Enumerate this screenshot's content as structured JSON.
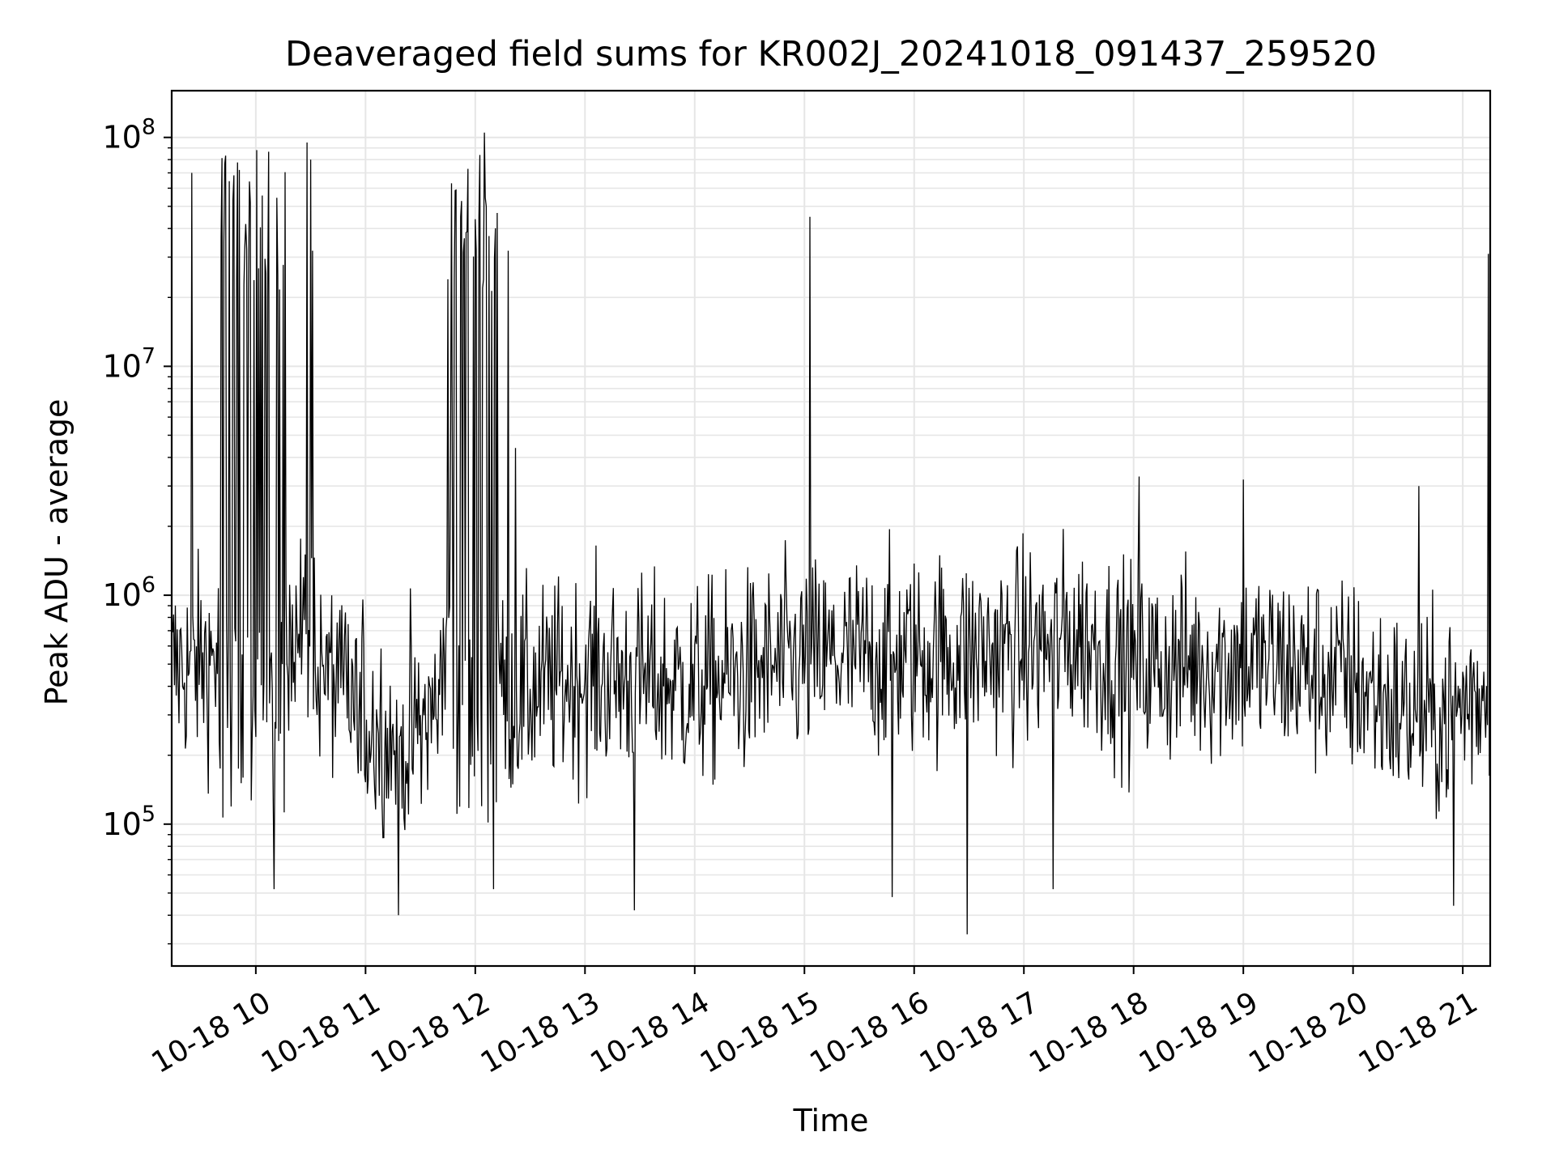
{
  "chart_data": {
    "type": "line",
    "title": "Deaveraged field sums for KR002J_20241018_091437_259520",
    "xlabel": "Time",
    "ylabel": "Peak ADU - average",
    "x_axis": {
      "range": [
        "2024-10-18 09:14",
        "2024-10-18 21:15"
      ],
      "tick_labels": [
        "10-18 10",
        "10-18 11",
        "10-18 12",
        "10-18 13",
        "10-18 14",
        "10-18 15",
        "10-18 16",
        "10-18 17",
        "10-18 18",
        "10-18 19",
        "10-18 20",
        "10-18 21"
      ],
      "tick_hours": [
        10,
        11,
        12,
        13,
        14,
        15,
        16,
        17,
        18,
        19,
        20,
        21
      ],
      "tick_label_rotation_deg": 30
    },
    "y_axis": {
      "scale": "log",
      "range": [
        24000,
        160000000
      ],
      "major_ticks": [
        100000,
        1000000,
        10000000,
        100000000
      ]
    },
    "grid": true,
    "series_color": "#000000",
    "series": [
      {
        "sampling": "approximately 1 sample per minute; median-level envelope plus isolated spikes",
        "baseline": [
          [
            "2024-10-18 09:14",
            480000
          ],
          [
            "2024-10-18 09:30",
            500000
          ],
          [
            "2024-10-18 09:40",
            550000
          ],
          [
            "2024-10-18 09:45",
            20000000
          ],
          [
            "2024-10-18 10:00",
            50000000
          ],
          [
            "2024-10-18 10:12",
            60000000
          ],
          [
            "2024-10-18 10:15",
            900000
          ],
          [
            "2024-10-18 10:40",
            450000
          ],
          [
            "2024-10-18 11:00",
            280000
          ],
          [
            "2024-10-18 11:20",
            220000
          ],
          [
            "2024-10-18 11:40",
            320000
          ],
          [
            "2024-10-18 11:50",
            4000000
          ],
          [
            "2024-10-18 12:05",
            8000000
          ],
          [
            "2024-10-18 12:15",
            350000
          ],
          [
            "2024-10-18 13:00",
            450000
          ],
          [
            "2024-10-18 14:00",
            400000
          ],
          [
            "2024-10-18 15:00",
            520000
          ],
          [
            "2024-10-18 16:00",
            550000
          ],
          [
            "2024-10-18 17:00",
            580000
          ],
          [
            "2024-10-18 17:30",
            650000
          ],
          [
            "2024-10-18 18:00",
            480000
          ],
          [
            "2024-10-18 19:00",
            520000
          ],
          [
            "2024-10-18 19:30",
            480000
          ],
          [
            "2024-10-18 20:00",
            420000
          ],
          [
            "2024-10-18 20:30",
            300000
          ],
          [
            "2024-10-18 20:45",
            280000
          ],
          [
            "2024-10-18 21:15",
            400000
          ]
        ],
        "spikes": [
          [
            "2024-10-18 09:25",
            70000000
          ],
          [
            "2024-10-18 10:10",
            95000000
          ],
          [
            "2024-10-18 10:28",
            95000000
          ],
          [
            "2024-10-18 10:30",
            80000000
          ],
          [
            "2024-10-18 10:31",
            32000000
          ],
          [
            "2024-10-18 11:45",
            24000000
          ],
          [
            "2024-10-18 11:47",
            63000000
          ],
          [
            "2024-10-18 11:52",
            45000000
          ],
          [
            "2024-10-18 12:05",
            105000000
          ],
          [
            "2024-10-18 12:10",
            88000000
          ],
          [
            "2024-10-18 12:18",
            32000000
          ],
          [
            "2024-10-18 12:22",
            4400000
          ],
          [
            "2024-10-18 15:03",
            45000000
          ],
          [
            "2024-10-18 18:03",
            3300000
          ],
          [
            "2024-10-18 19:00",
            3200000
          ],
          [
            "2024-10-18 20:36",
            3000000
          ],
          [
            "2024-10-18 21:14",
            31000000
          ]
        ],
        "minima": [
          [
            "2024-10-18 10:10",
            52000
          ],
          [
            "2024-10-18 11:18",
            40000
          ],
          [
            "2024-10-18 12:10",
            52000
          ],
          [
            "2024-10-18 13:27",
            42000
          ],
          [
            "2024-10-18 15:48",
            48000
          ],
          [
            "2024-10-18 16:29",
            33000
          ],
          [
            "2024-10-18 17:16",
            52000
          ],
          [
            "2024-10-18 20:55",
            44000
          ]
        ]
      }
    ]
  }
}
